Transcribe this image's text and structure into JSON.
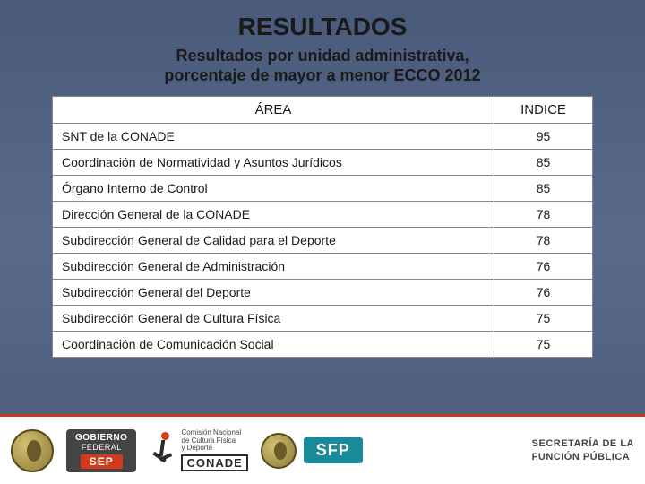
{
  "header": {
    "title": "RESULTADOS",
    "title_fontsize": 28,
    "subtitle_line1": "Resultados por unidad administrativa,",
    "subtitle_line2": "porcentaje de mayor a menor ECCO 2012",
    "subtitle_fontsize": 18,
    "text_color": "#1a1a1a"
  },
  "background": {
    "gradient_top": "#4a5a7a",
    "gradient_mid": "#5a6a8a",
    "gradient_bottom": "#4a5a7a"
  },
  "table": {
    "type": "table",
    "columns": [
      "ÁREA",
      "INDICE"
    ],
    "header_fontsize": 15,
    "cell_fontsize": 14,
    "border_color": "#888888",
    "background_color": "#ffffff",
    "text_color": "#1a1a1a",
    "col_widths_pct": [
      82,
      18
    ],
    "col_align": [
      "left",
      "center"
    ],
    "rows": [
      {
        "area": "SNT de la CONADE",
        "indice": "95"
      },
      {
        "area": "Coordinación de Normatividad y Asuntos Jurídicos",
        "indice": "85"
      },
      {
        "area": "Órgano Interno de Control",
        "indice": "85"
      },
      {
        "area": "Dirección General de la CONADE",
        "indice": "78"
      },
      {
        "area": "Subdirección General de Calidad para el Deporte",
        "indice": "78"
      },
      {
        "area": "Subdirección General de Administración",
        "indice": "76"
      },
      {
        "area": "Subdirección General del Deporte",
        "indice": "76"
      },
      {
        "area": "Subdirección General de Cultura Física",
        "indice": "75"
      },
      {
        "area": "Coordinación de Comunicación Social",
        "indice": "75"
      }
    ]
  },
  "footer": {
    "background_color": "#ffffff",
    "accent_line_color": "#c23a1a",
    "gobierno": {
      "line1": "GOBIERNO",
      "line2": "FEDERAL",
      "badge": "SEP",
      "bg": "#444444",
      "badge_bg": "#d23a1a"
    },
    "conade": {
      "line1": "Comisión Nacional",
      "line2": "de Cultura Física",
      "line3": "y Deporte",
      "brand": "CONADE",
      "accent_color": "#d23a1a",
      "text_color": "#444444"
    },
    "sfp": {
      "badge": "SFP",
      "bg": "#1a8a9a"
    },
    "secretaria": {
      "line1": "SECRETARÍA DE LA",
      "line2": "FUNCIÓN PÚBLICA",
      "text_color": "#555555"
    }
  }
}
